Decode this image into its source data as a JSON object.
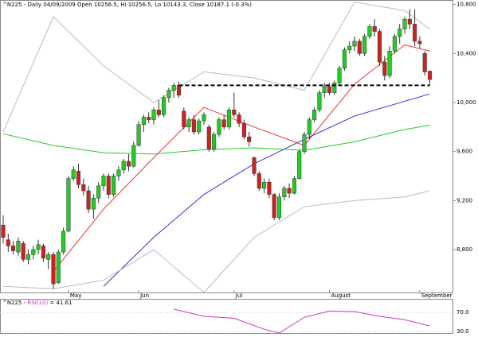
{
  "chart_data": [
    {
      "type": "candlestick",
      "title": "^N225 - Daily 04/09/2009 Open 10256.5, Hi 10256.5, Lo 10143.3, Close 10187.1 (-0.3%)",
      "categories": [
        null,
        null,
        null,
        null,
        null,
        null,
        null,
        null,
        null,
        null,
        null,
        null,
        null,
        "May",
        null,
        null,
        null,
        null,
        null,
        null,
        null,
        null,
        null,
        null,
        null,
        null,
        null,
        "Jun",
        null,
        null,
        null,
        null,
        null,
        null,
        null,
        null,
        null,
        null,
        null,
        null,
        null,
        null,
        null,
        null,
        null,
        null,
        "Jul",
        null,
        null,
        null,
        null,
        null,
        null,
        null,
        null,
        null,
        null,
        null,
        null,
        null,
        null,
        null,
        null,
        null,
        null,
        "August",
        null,
        null,
        null,
        null,
        null,
        null,
        null,
        null,
        null,
        null,
        null,
        null,
        null,
        null,
        null,
        null,
        null,
        "September",
        null,
        null
      ],
      "ohlc": [
        [
          9000,
          9080,
          8850,
          8900
        ],
        [
          8880,
          8930,
          8780,
          8830
        ],
        [
          8830,
          8870,
          8760,
          8790
        ],
        [
          8780,
          8900,
          8750,
          8870
        ],
        [
          8850,
          8870,
          8700,
          8720
        ],
        [
          8720,
          8800,
          8680,
          8760
        ],
        [
          8760,
          8830,
          8720,
          8800
        ],
        [
          8800,
          8880,
          8760,
          8840
        ],
        [
          8830,
          8850,
          8700,
          8730
        ],
        [
          8720,
          8780,
          8640,
          8760
        ],
        [
          8760,
          8780,
          8480,
          8520
        ],
        [
          8530,
          8800,
          8520,
          8780
        ],
        [
          8780,
          8980,
          8760,
          8950
        ],
        [
          8950,
          9400,
          8940,
          9380
        ],
        [
          9380,
          9480,
          9360,
          9450
        ],
        [
          9440,
          9500,
          9300,
          9330
        ],
        [
          9330,
          9380,
          9240,
          9280
        ],
        [
          9280,
          9320,
          9100,
          9130
        ],
        [
          9130,
          9250,
          9050,
          9220
        ],
        [
          9220,
          9350,
          9180,
          9320
        ],
        [
          9320,
          9420,
          9280,
          9400
        ],
        [
          9400,
          9420,
          9220,
          9250
        ],
        [
          9250,
          9420,
          9230,
          9400
        ],
        [
          9400,
          9480,
          9360,
          9450
        ],
        [
          9450,
          9540,
          9420,
          9520
        ],
        [
          9520,
          9580,
          9440,
          9480
        ],
        [
          9480,
          9680,
          9470,
          9650
        ],
        [
          9650,
          9850,
          9640,
          9820
        ],
        [
          9820,
          9900,
          9760,
          9880
        ],
        [
          9880,
          9920,
          9830,
          9860
        ],
        [
          9860,
          9960,
          9820,
          9940
        ],
        [
          9940,
          10020,
          9880,
          9900
        ],
        [
          9900,
          10060,
          9880,
          10040
        ],
        [
          10040,
          10120,
          10000,
          10100
        ],
        [
          10100,
          10160,
          10040,
          10140
        ],
        [
          10140,
          10170,
          10040,
          10060
        ],
        [
          9930,
          9960,
          9780,
          9800
        ],
        [
          9800,
          9880,
          9760,
          9860
        ],
        [
          9860,
          9900,
          9740,
          9760
        ],
        [
          9760,
          9870,
          9740,
          9850
        ],
        [
          9850,
          9920,
          9820,
          9900
        ],
        [
          9800,
          9820,
          9600,
          9620
        ],
        [
          9620,
          9760,
          9600,
          9740
        ],
        [
          9740,
          9880,
          9720,
          9860
        ],
        [
          9860,
          9900,
          9780,
          9800
        ],
        [
          9800,
          9960,
          9780,
          9940
        ],
        [
          9940,
          10080,
          9880,
          9900
        ],
        [
          9900,
          9920,
          9800,
          9830
        ],
        [
          9830,
          9860,
          9700,
          9720
        ],
        [
          9720,
          9760,
          9640,
          9680
        ],
        [
          9550,
          9560,
          9400,
          9420
        ],
        [
          9420,
          9440,
          9280,
          9300
        ],
        [
          9300,
          9380,
          9260,
          9350
        ],
        [
          9350,
          9380,
          9220,
          9250
        ],
        [
          9250,
          9260,
          9040,
          9060
        ],
        [
          9060,
          9260,
          9040,
          9230
        ],
        [
          9230,
          9320,
          9200,
          9300
        ],
        [
          9300,
          9340,
          9220,
          9260
        ],
        [
          9260,
          9400,
          9250,
          9380
        ],
        [
          9380,
          9620,
          9370,
          9600
        ],
        [
          9600,
          9760,
          9580,
          9740
        ],
        [
          9740,
          9880,
          9700,
          9860
        ],
        [
          9860,
          9960,
          9840,
          9940
        ],
        [
          9940,
          10100,
          9920,
          10080
        ],
        [
          10080,
          10160,
          10040,
          10130
        ],
        [
          10130,
          10160,
          10060,
          10080
        ],
        [
          10080,
          10180,
          10060,
          10160
        ],
        [
          10160,
          10300,
          10140,
          10280
        ],
        [
          10280,
          10450,
          10260,
          10430
        ],
        [
          10430,
          10500,
          10400,
          10460
        ],
        [
          10460,
          10540,
          10420,
          10500
        ],
        [
          10500,
          10520,
          10380,
          10400
        ],
        [
          10400,
          10560,
          10380,
          10540
        ],
        [
          10540,
          10640,
          10520,
          10620
        ],
        [
          10620,
          10680,
          10540,
          10580
        ],
        [
          10580,
          10600,
          10300,
          10330
        ],
        [
          10330,
          10380,
          10180,
          10220
        ],
        [
          10220,
          10460,
          10200,
          10420
        ],
        [
          10420,
          10560,
          10400,
          10540
        ],
        [
          10540,
          10640,
          10480,
          10600
        ],
        [
          10600,
          10700,
          10560,
          10680
        ],
        [
          10680,
          10760,
          10600,
          10640
        ],
        [
          10640,
          10760,
          10460,
          10500
        ],
        [
          10500,
          10540,
          10440,
          10480
        ],
        [
          10400,
          10420,
          10220,
          10250
        ],
        [
          10256.5,
          10256.5,
          10143.3,
          10187.1
        ]
      ],
      "up_color": "#22cc22",
      "down_color": "#cc2222",
      "ylim": [
        8450,
        10830
      ],
      "yticks": [
        {
          "value": 8800,
          "label": "8,800"
        },
        {
          "value": 9200,
          "label": "9,200"
        },
        {
          "value": 9600,
          "label": "9,600"
        },
        {
          "value": 10000,
          "label": "10,000"
        },
        {
          "value": 10400,
          "label": "10,400"
        },
        {
          "value": 10800,
          "label": "10,800"
        }
      ],
      "overlays": {
        "x": [
          0,
          10,
          20,
          30,
          40,
          50,
          60,
          70,
          80,
          85
        ],
        "series": [
          {
            "color": "#ee3333",
            "values": [
              null,
              8620,
              9130,
              9550,
              9960,
              9800,
              9650,
              10150,
              10470,
              10420
            ]
          },
          {
            "color": "#3333dd",
            "values": [
              null,
              null,
              8500,
              8900,
              9250,
              9500,
              9700,
              9890,
              10010,
              10070
            ]
          },
          {
            "color": "#22cc22",
            "values": [
              9745,
              9650,
              9590,
              9580,
              9615,
              9630,
              9610,
              9680,
              9780,
              9815
            ]
          },
          {
            "color": "#bbbbbb",
            "values": [
              9760,
              10700,
              10300,
              10000,
              10250,
              10200,
              10100,
              10820,
              10750,
              10600
            ]
          },
          {
            "color": "#bbbbbb",
            "values": [
              8500,
              8480,
              8550,
              8800,
              8450,
              8900,
              9150,
              9200,
              9230,
              9280
            ]
          }
        ]
      },
      "hline": {
        "value": 10140,
        "from": 35,
        "to": 85
      }
    },
    {
      "type": "line",
      "title": "^N225 -",
      "series": [
        {
          "name": "RSI(10)",
          "color": "#cc33cc",
          "x": [
            34,
            40,
            46,
            52,
            55,
            60,
            65,
            70,
            75,
            80,
            85
          ],
          "values": [
            77,
            62,
            58,
            35,
            27,
            60,
            73,
            72,
            62,
            55,
            41.61
          ]
        }
      ],
      "value_label": "= 41.61",
      "ylim": [
        27,
        97
      ],
      "yticks": [
        {
          "value": 70,
          "label": "70.0"
        },
        {
          "value": 30,
          "label": "30.0"
        }
      ]
    }
  ]
}
